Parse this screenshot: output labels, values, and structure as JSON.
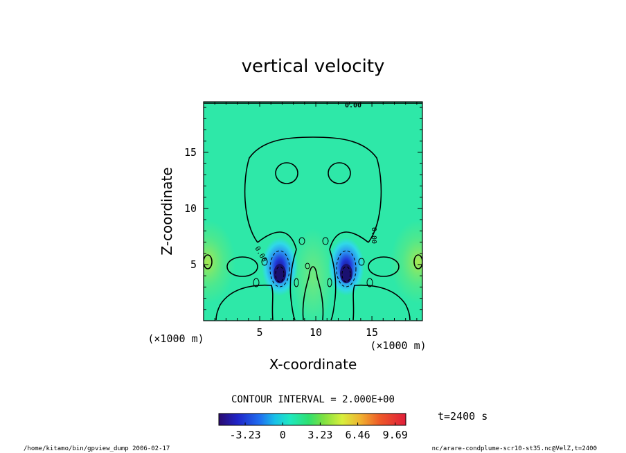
{
  "chart_data": {
    "type": "heatmap",
    "title": "vertical velocity",
    "xlabel": "X-coordinate",
    "ylabel": "Z-coordinate",
    "x_unit": "(×1000 m)",
    "y_unit": "(×1000 m)",
    "xlim": [
      0,
      19.5
    ],
    "ylim": [
      0,
      19.5
    ],
    "x_ticks": [
      5,
      10,
      15
    ],
    "y_ticks": [
      5,
      10,
      15
    ],
    "contour_interval_text": "CONTOUR INTERVAL = 2.000E+00",
    "contour_labels": [
      "0.00",
      "0.00",
      "0.00"
    ],
    "colorbar": {
      "ticks": [
        "-3.23",
        "0",
        "3.23",
        "6.46",
        "9.69"
      ],
      "tick_values": [
        -3.23,
        0,
        3.23,
        6.46,
        9.69
      ],
      "range": [
        -5.5,
        10.6
      ]
    },
    "field_features": [
      {
        "x": 7.0,
        "z": 4.0,
        "value": -5.5,
        "note": "downdraft core left"
      },
      {
        "x": 12.9,
        "z": 4.0,
        "value": -5.5,
        "note": "downdraft core right"
      }
    ]
  },
  "time_label": "t=2400 s",
  "footer_left": "/home/kitamo/bin/gpview_dump  2006-02-17",
  "footer_right": "nc/arare-condplume-scr10-st35.nc@VelZ,t=2400"
}
